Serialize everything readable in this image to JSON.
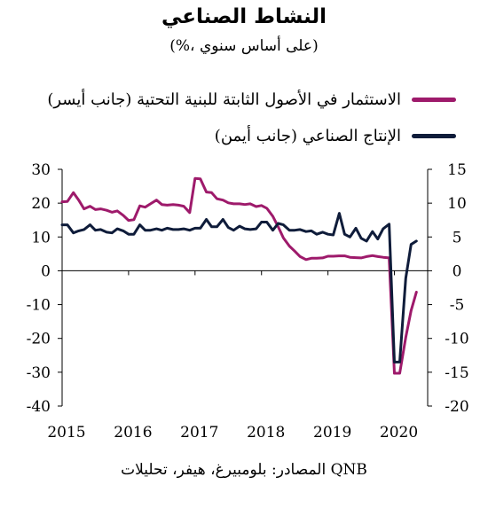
{
  "chart_data": {
    "type": "line",
    "title": "النشاط الصناعي",
    "subtitle": "(%، على أساس سنوي)",
    "source": "المصادر: بلومبيرغ، هيفر، تحليلات QNB",
    "x_ticks": [
      "2015",
      "2016",
      "2017",
      "2018",
      "2019",
      "2020"
    ],
    "xlim": [
      2015,
      2020.5
    ],
    "y_left": {
      "ticks": [
        "30",
        "20",
        "10",
        "0",
        "-10",
        "-20",
        "-30",
        "-40"
      ],
      "lim": [
        -40,
        30
      ]
    },
    "y_right": {
      "ticks": [
        "15",
        "10",
        "5",
        "0",
        "-5",
        "-10",
        "-15",
        "-20"
      ],
      "lim": [
        -20,
        15
      ]
    },
    "grid": false,
    "legend_position": "top-right",
    "series": [
      {
        "name": "الاستثمار في الأصول الثابتة للبنية التحتية (جانب أيسر)",
        "color": "#9e1a6b",
        "axis": "left",
        "points": [
          [
            2015.0,
            20.4
          ],
          [
            2015.08,
            20.5
          ],
          [
            2015.17,
            23.1
          ],
          [
            2015.25,
            20.9
          ],
          [
            2015.33,
            18.3
          ],
          [
            2015.42,
            19.1
          ],
          [
            2015.5,
            18.1
          ],
          [
            2015.58,
            18.3
          ],
          [
            2015.67,
            17.9
          ],
          [
            2015.75,
            17.3
          ],
          [
            2015.83,
            17.7
          ],
          [
            2015.92,
            16.4
          ],
          [
            2016.0,
            14.9
          ],
          [
            2016.08,
            15.1
          ],
          [
            2016.17,
            19.2
          ],
          [
            2016.25,
            18.8
          ],
          [
            2016.33,
            19.8
          ],
          [
            2016.42,
            20.9
          ],
          [
            2016.5,
            19.6
          ],
          [
            2016.58,
            19.4
          ],
          [
            2016.67,
            19.6
          ],
          [
            2016.75,
            19.4
          ],
          [
            2016.83,
            19.1
          ],
          [
            2016.92,
            17.2
          ],
          [
            2017.0,
            27.3
          ],
          [
            2017.08,
            27.2
          ],
          [
            2017.17,
            23.3
          ],
          [
            2017.25,
            23.1
          ],
          [
            2017.33,
            21.3
          ],
          [
            2017.42,
            20.9
          ],
          [
            2017.5,
            20.1
          ],
          [
            2017.58,
            19.8
          ],
          [
            2017.67,
            19.8
          ],
          [
            2017.75,
            19.6
          ],
          [
            2017.83,
            19.8
          ],
          [
            2017.92,
            19.0
          ],
          [
            2018.0,
            19.3
          ],
          [
            2018.08,
            18.5
          ],
          [
            2018.17,
            16.1
          ],
          [
            2018.25,
            13.0
          ],
          [
            2018.33,
            9.7
          ],
          [
            2018.42,
            7.3
          ],
          [
            2018.5,
            5.8
          ],
          [
            2018.58,
            4.2
          ],
          [
            2018.67,
            3.3
          ],
          [
            2018.75,
            3.7
          ],
          [
            2018.83,
            3.7
          ],
          [
            2018.92,
            3.8
          ],
          [
            2019.0,
            4.3
          ],
          [
            2019.08,
            4.3
          ],
          [
            2019.17,
            4.4
          ],
          [
            2019.25,
            4.4
          ],
          [
            2019.33,
            4.0
          ],
          [
            2019.42,
            3.9
          ],
          [
            2019.5,
            3.8
          ],
          [
            2019.58,
            4.2
          ],
          [
            2019.67,
            4.5
          ],
          [
            2019.75,
            4.2
          ],
          [
            2019.83,
            4.0
          ],
          [
            2019.92,
            3.8
          ],
          [
            2020.0,
            -30.3
          ],
          [
            2020.08,
            -30.3
          ],
          [
            2020.17,
            -19.7
          ],
          [
            2020.25,
            -11.8
          ],
          [
            2020.33,
            -6.3
          ]
        ]
      },
      {
        "name": "الإنتاج الصناعي (جانب أيمن)",
        "color": "#0f1c3a",
        "axis": "right",
        "points": [
          [
            2015.0,
            6.8
          ],
          [
            2015.08,
            6.8
          ],
          [
            2015.17,
            5.6
          ],
          [
            2015.25,
            5.9
          ],
          [
            2015.33,
            6.1
          ],
          [
            2015.42,
            6.8
          ],
          [
            2015.5,
            6.0
          ],
          [
            2015.58,
            6.1
          ],
          [
            2015.67,
            5.7
          ],
          [
            2015.75,
            5.6
          ],
          [
            2015.83,
            6.2
          ],
          [
            2015.92,
            5.9
          ],
          [
            2016.0,
            5.4
          ],
          [
            2016.08,
            5.4
          ],
          [
            2016.17,
            6.8
          ],
          [
            2016.25,
            6.0
          ],
          [
            2016.33,
            6.0
          ],
          [
            2016.42,
            6.2
          ],
          [
            2016.5,
            6.0
          ],
          [
            2016.58,
            6.3
          ],
          [
            2016.67,
            6.1
          ],
          [
            2016.75,
            6.1
          ],
          [
            2016.83,
            6.2
          ],
          [
            2016.92,
            6.0
          ],
          [
            2017.0,
            6.3
          ],
          [
            2017.08,
            6.3
          ],
          [
            2017.17,
            7.6
          ],
          [
            2017.25,
            6.5
          ],
          [
            2017.33,
            6.5
          ],
          [
            2017.42,
            7.6
          ],
          [
            2017.5,
            6.4
          ],
          [
            2017.58,
            6.0
          ],
          [
            2017.67,
            6.6
          ],
          [
            2017.75,
            6.2
          ],
          [
            2017.83,
            6.1
          ],
          [
            2017.92,
            6.2
          ],
          [
            2018.0,
            7.2
          ],
          [
            2018.08,
            7.2
          ],
          [
            2018.17,
            6.0
          ],
          [
            2018.25,
            7.0
          ],
          [
            2018.33,
            6.8
          ],
          [
            2018.42,
            6.0
          ],
          [
            2018.5,
            6.0
          ],
          [
            2018.58,
            6.1
          ],
          [
            2018.67,
            5.8
          ],
          [
            2018.75,
            5.9
          ],
          [
            2018.83,
            5.4
          ],
          [
            2018.92,
            5.7
          ],
          [
            2019.0,
            5.4
          ],
          [
            2019.08,
            5.3
          ],
          [
            2019.17,
            8.5
          ],
          [
            2019.25,
            5.4
          ],
          [
            2019.33,
            5.0
          ],
          [
            2019.42,
            6.3
          ],
          [
            2019.5,
            4.8
          ],
          [
            2019.58,
            4.4
          ],
          [
            2019.67,
            5.8
          ],
          [
            2019.75,
            4.7
          ],
          [
            2019.83,
            6.2
          ],
          [
            2019.92,
            6.9
          ],
          [
            2020.0,
            -13.5
          ],
          [
            2020.08,
            -13.5
          ],
          [
            2020.17,
            -1.1
          ],
          [
            2020.25,
            3.9
          ],
          [
            2020.33,
            4.4
          ]
        ]
      }
    ]
  }
}
